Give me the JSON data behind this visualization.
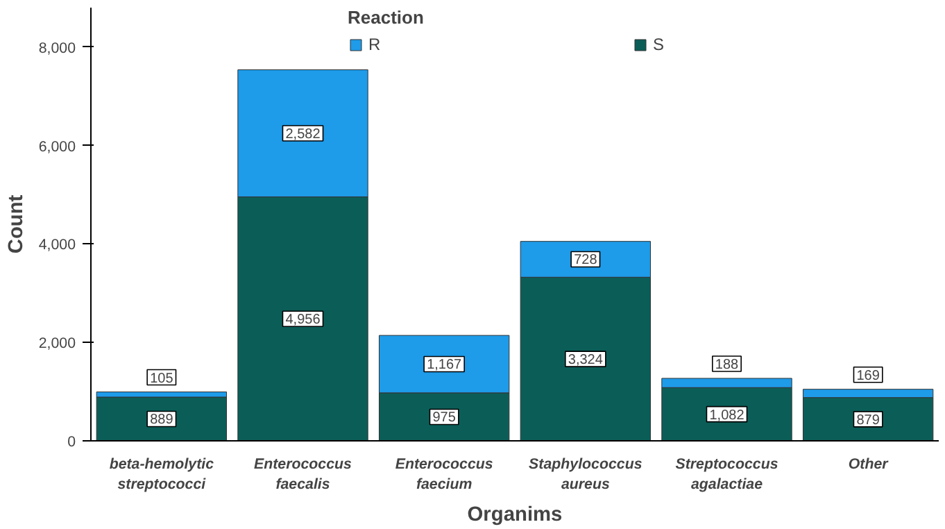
{
  "chart_data": {
    "type": "bar",
    "stacked": true,
    "xlabel": "Organims",
    "ylabel": "Count",
    "legend_title": "Reaction",
    "legend": "top",
    "categories": [
      "beta-hemolytic\nstreptococci",
      "Enterococcus\nfaecalis",
      "Enterococcus\nfaecium",
      "Staphylococcus\naureus",
      "Streptococcus\nagalactiae",
      "Other"
    ],
    "series": [
      {
        "name": "S",
        "color": "#0b5e58",
        "values": [
          889,
          4956,
          975,
          3324,
          1082,
          879
        ],
        "value_labels": [
          "889",
          "4,956",
          "975",
          "3,324",
          "1,082",
          "879"
        ]
      },
      {
        "name": "R",
        "color": "#1e9be9",
        "values": [
          105,
          2582,
          1167,
          728,
          188,
          169
        ],
        "value_labels": [
          "105",
          "2,582",
          "1,167",
          "728",
          "188",
          "169"
        ]
      }
    ],
    "ylim": [
      0,
      8800
    ],
    "yticks": [
      {
        "value": 0,
        "label": "0"
      },
      {
        "value": 2000,
        "label": "2,000"
      },
      {
        "value": 4000,
        "label": "4,000"
      },
      {
        "value": 6000,
        "label": "6,000"
      },
      {
        "value": 8000,
        "label": "8,000"
      }
    ],
    "grid": false
  }
}
